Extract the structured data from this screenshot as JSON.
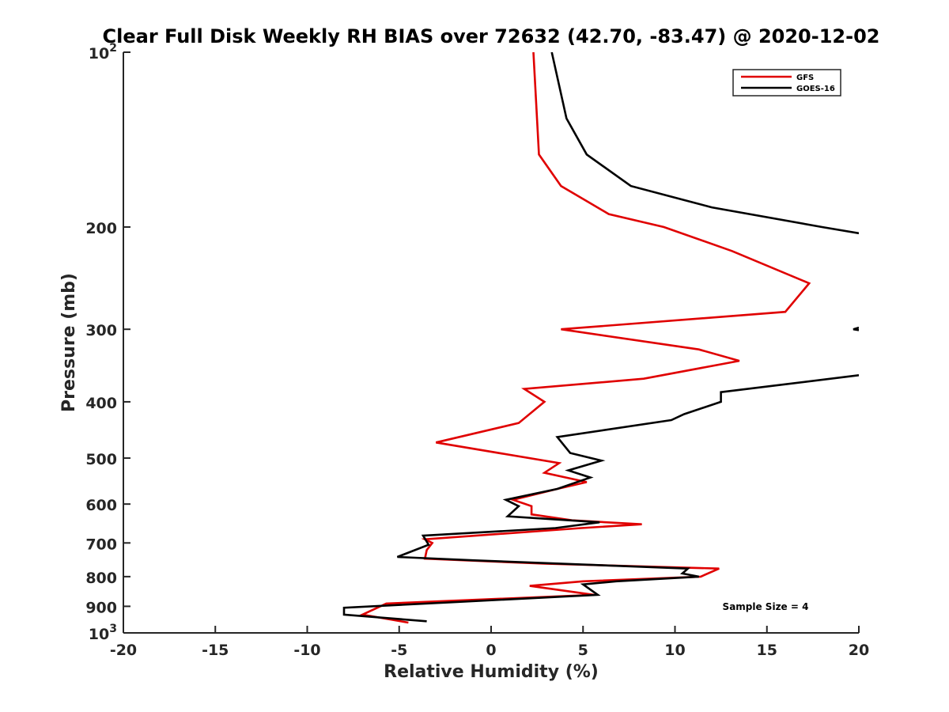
{
  "chart_data": {
    "type": "line",
    "title": "Clear Full Disk Weekly RH BIAS over 72632 (42.70, -83.47) @ 2020-12-02",
    "xlabel": "Relative Humidity (%)",
    "ylabel": "Pressure (mb)",
    "xlim": [
      -20,
      20
    ],
    "ylim": [
      1000,
      100
    ],
    "y_scale": "log",
    "y_reversed": true,
    "x_ticks": [
      -20,
      -15,
      -10,
      -5,
      0,
      5,
      10,
      15,
      20
    ],
    "x_tick_labels": [
      "-20",
      "-15",
      "-10",
      "-5",
      "0",
      "5",
      "10",
      "15",
      "20"
    ],
    "y_ticks": [
      100,
      200,
      300,
      400,
      500,
      600,
      700,
      800,
      900,
      1000
    ],
    "y_tick_labels": [
      {
        "base": "10",
        "exp": "2"
      },
      {
        "base": "200",
        "exp": ""
      },
      {
        "base": "300",
        "exp": ""
      },
      {
        "base": "400",
        "exp": ""
      },
      {
        "base": "500",
        "exp": ""
      },
      {
        "base": "600",
        "exp": ""
      },
      {
        "base": "700",
        "exp": ""
      },
      {
        "base": "800",
        "exp": ""
      },
      {
        "base": "900",
        "exp": ""
      },
      {
        "base": "10",
        "exp": "3"
      }
    ],
    "grid": false,
    "legend_position": "top-right",
    "annotation": "Sample Size = 4",
    "series": [
      {
        "name": "GFS",
        "color": "#e00000",
        "points": [
          [
            2.3,
            100
          ],
          [
            2.6,
            150
          ],
          [
            3.8,
            170
          ],
          [
            6.4,
            190
          ],
          [
            9.4,
            200
          ],
          [
            13.1,
            220
          ],
          [
            17.3,
            250
          ],
          [
            16.0,
            280
          ],
          [
            3.8,
            300
          ],
          [
            11.3,
            325
          ],
          [
            13.5,
            340
          ],
          [
            8.3,
            365
          ],
          [
            1.8,
            380
          ],
          [
            2.9,
            400
          ],
          [
            1.5,
            435
          ],
          [
            -3.0,
            470
          ],
          [
            3.7,
            510
          ],
          [
            2.9,
            530
          ],
          [
            5.2,
            550
          ],
          [
            3.6,
            565
          ],
          [
            1.2,
            590
          ],
          [
            2.2,
            605
          ],
          [
            2.2,
            625
          ],
          [
            4.4,
            640
          ],
          [
            8.2,
            650
          ],
          [
            4.9,
            660
          ],
          [
            -3.6,
            690
          ],
          [
            -3.2,
            700
          ],
          [
            -3.5,
            720
          ],
          [
            -3.6,
            745
          ],
          [
            2.9,
            760
          ],
          [
            12.4,
            775
          ],
          [
            11.4,
            800
          ],
          [
            5.0,
            815
          ],
          [
            2.1,
            830
          ],
          [
            5.6,
            860
          ],
          [
            -5.7,
            890
          ],
          [
            -7.0,
            930
          ],
          [
            -4.5,
            960
          ]
        ]
      },
      {
        "name": "GOES-16",
        "color": "#000000",
        "segments": [
          [
            [
              3.3,
              100
            ],
            [
              4.1,
              130
            ],
            [
              5.2,
              150
            ],
            [
              7.6,
              170
            ],
            [
              12.0,
              185
            ],
            [
              18.0,
              200
            ],
            [
              20.0,
              205
            ]
          ],
          [
            [
              20.0,
              298
            ],
            [
              19.7,
              300
            ],
            [
              20.0,
              301
            ]
          ],
          [
            [
              20.0,
              360
            ],
            [
              12.5,
              385
            ],
            [
              12.5,
              400
            ],
            [
              10.5,
              420
            ],
            [
              9.8,
              430
            ],
            [
              3.6,
              460
            ],
            [
              4.3,
              490
            ],
            [
              6.0,
              505
            ],
            [
              4.2,
              525
            ],
            [
              5.4,
              540
            ],
            [
              3.6,
              565
            ],
            [
              0.8,
              590
            ],
            [
              1.5,
              605
            ],
            [
              0.9,
              630
            ],
            [
              5.9,
              645
            ],
            [
              3.5,
              660
            ],
            [
              -3.7,
              680
            ],
            [
              -3.4,
              705
            ],
            [
              -5.1,
              740
            ],
            [
              -0.9,
              750
            ],
            [
              10.7,
              775
            ],
            [
              10.4,
              790
            ],
            [
              11.3,
              800
            ],
            [
              6.8,
              815
            ],
            [
              5.0,
              825
            ],
            [
              5.8,
              860
            ],
            [
              -8.0,
              905
            ],
            [
              -8.0,
              930
            ],
            [
              -3.5,
              955
            ]
          ]
        ]
      }
    ]
  }
}
